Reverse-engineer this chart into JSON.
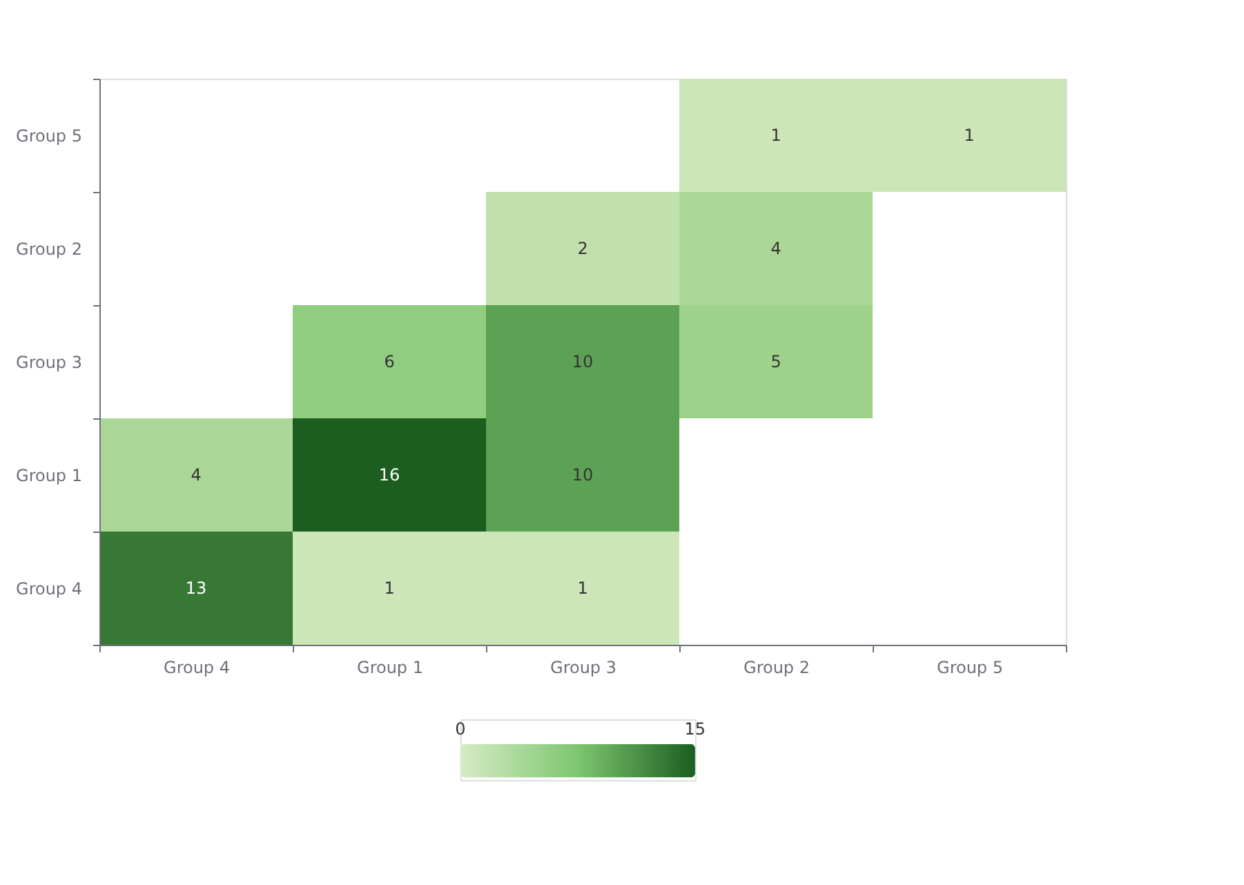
{
  "chart_data": {
    "type": "heatmap",
    "categories": [
      "Group 4",
      "Group 1",
      "Group 3",
      "Group 2",
      "Group 5"
    ],
    "y_categories": [
      "Group 5",
      "Group 2",
      "Group 3",
      "Group 1",
      "Group 4"
    ],
    "cells": [
      [
        null,
        null,
        null,
        1,
        1
      ],
      [
        null,
        null,
        2,
        4,
        null
      ],
      [
        null,
        6,
        10,
        5,
        null
      ],
      [
        4,
        16,
        10,
        null,
        null
      ],
      [
        13,
        1,
        1,
        null,
        null
      ]
    ],
    "clim": [
      0,
      15
    ],
    "cticks": [
      0,
      15
    ],
    "data_labels": true
  }
}
